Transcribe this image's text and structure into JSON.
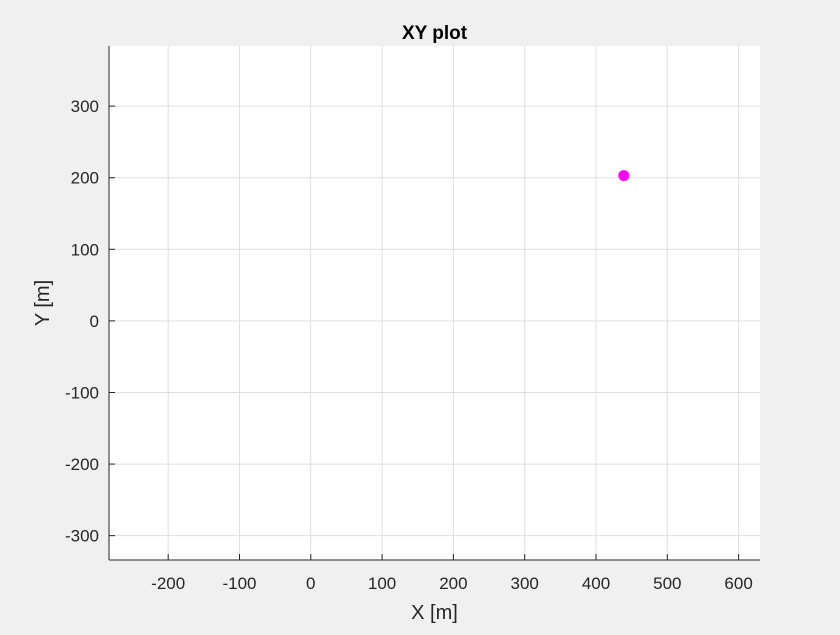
{
  "chart_data": {
    "type": "scatter",
    "title": "XY plot",
    "xlabel": "X [m]",
    "ylabel": "Y [m]",
    "xlim": [
      -283,
      630
    ],
    "ylim": [
      -334,
      384
    ],
    "xticks": [
      -200,
      -100,
      0,
      100,
      200,
      300,
      400,
      500,
      600
    ],
    "yticks": [
      -300,
      -200,
      -100,
      0,
      100,
      200,
      300
    ],
    "grid": true,
    "legend": "none",
    "series": [
      {
        "color": "#ff00ff",
        "marker": "circle",
        "points": [
          {
            "x": 439,
            "y": 203
          }
        ]
      }
    ]
  },
  "colors": {
    "figure_background": "#f0f0f0",
    "axes_background": "#ffffff",
    "grid": "#dfdfdf",
    "axis_line": "#262626",
    "text": "#262626"
  }
}
